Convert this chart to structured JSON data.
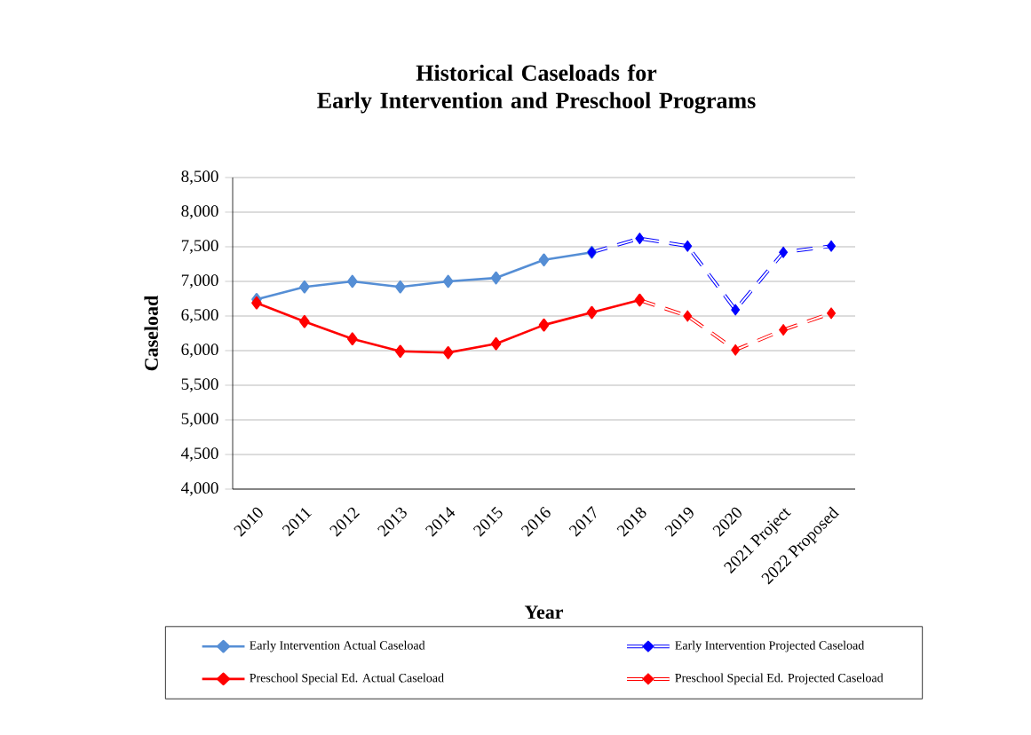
{
  "chart_data": {
    "type": "line",
    "title": "Historical Caseloads for\nEarly Intervention and Preschool Programs",
    "xlabel": "Year",
    "ylabel": "Caseload",
    "categories": [
      "2010",
      "2011",
      "2012",
      "2013",
      "2014",
      "2015",
      "2016",
      "2017",
      "2018",
      "2019",
      "2020",
      "2021 Project",
      "2022 Proposed"
    ],
    "series": [
      {
        "name": "Early Intervention Actual Caseload",
        "color": "#558ed5",
        "line_style": "solid",
        "values": [
          6740,
          6920,
          7000,
          6920,
          7000,
          7050,
          7310,
          7420,
          null,
          null,
          null,
          null,
          null
        ]
      },
      {
        "name": "Early Intervention Projected Caseload",
        "color": "#0000ff",
        "line_style": "dashed",
        "values": [
          null,
          null,
          null,
          null,
          null,
          null,
          null,
          7420,
          7620,
          7510,
          6590,
          7420,
          7510
        ]
      },
      {
        "name": "Preschool Special Ed. Actual Caseload",
        "color": "#ff0000",
        "line_style": "solid",
        "values": [
          6690,
          6420,
          6170,
          5990,
          5970,
          6100,
          6370,
          6550,
          6730,
          null,
          null,
          null,
          null
        ]
      },
      {
        "name": "Preschool Special Ed. Projected Caseload",
        "color": "#ff0000",
        "line_style": "dashed",
        "values": [
          null,
          null,
          null,
          null,
          null,
          null,
          null,
          null,
          6730,
          6500,
          6010,
          6300,
          6540
        ]
      }
    ],
    "ylim": [
      4000,
      8500
    ],
    "yticks": [
      {
        "value": 4000,
        "label": "4,000"
      },
      {
        "value": 4500,
        "label": "4,500"
      },
      {
        "value": 5000,
        "label": "5,000"
      },
      {
        "value": 5500,
        "label": "5,500"
      },
      {
        "value": 6000,
        "label": "6,000"
      },
      {
        "value": 6500,
        "label": "6,500"
      },
      {
        "value": 7000,
        "label": "7,000"
      },
      {
        "value": 7500,
        "label": "7,500"
      },
      {
        "value": 8000,
        "label": "8,000"
      },
      {
        "value": 8500,
        "label": "8,500"
      }
    ],
    "grid": "y",
    "legend": "bottom",
    "marker": "diamond"
  }
}
